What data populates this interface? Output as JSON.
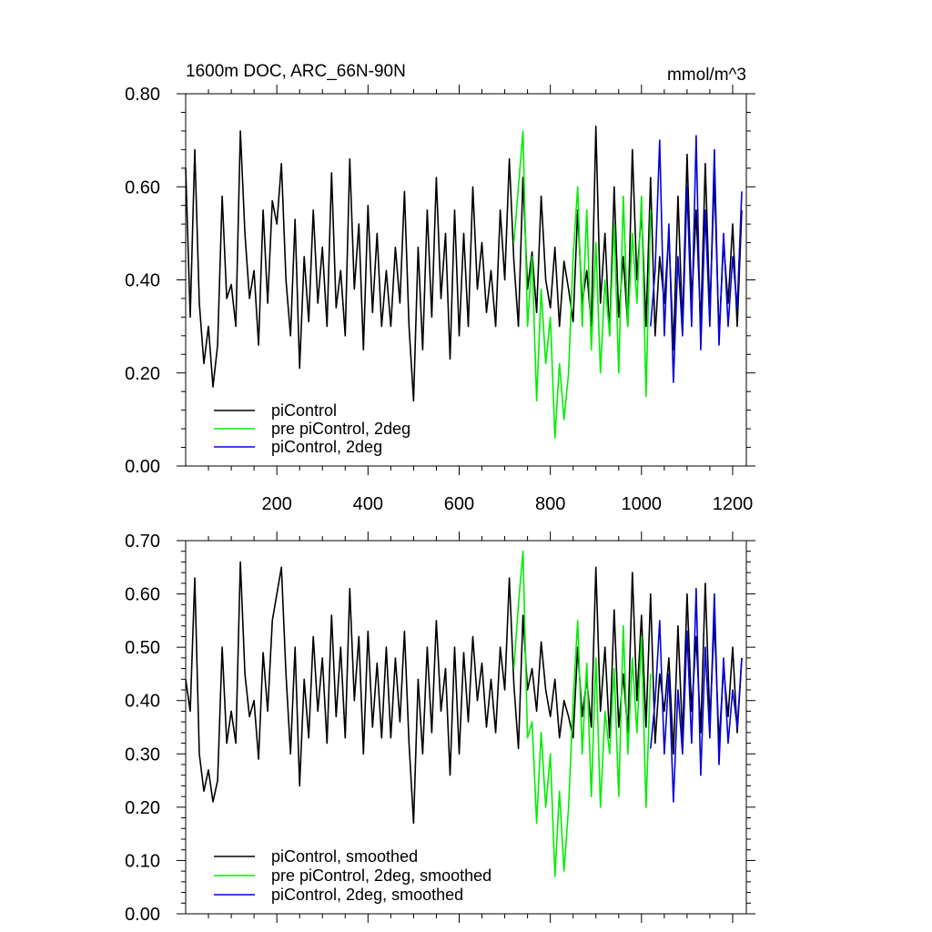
{
  "chart_data": [
    {
      "type": "line",
      "title": "1600m DOC, ARC_66N-90N",
      "units": "mmol/m^3",
      "xlim": [
        0,
        1230
      ],
      "ylim": [
        0,
        0.8
      ],
      "x_ticks": [
        200,
        400,
        600,
        800,
        1000,
        1200
      ],
      "x_tick_labels": [
        "200",
        "400",
        "600",
        "800",
        "1000",
        "1200"
      ],
      "y_ticks": [
        0,
        0.2,
        0.4,
        0.6,
        0.8
      ],
      "y_tick_labels": [
        "0.00",
        "0.20",
        "0.40",
        "0.60",
        "0.80"
      ],
      "legend_position": "bottom-left",
      "series": [
        {
          "name": "piControl",
          "color": "#000000",
          "x": [
            0,
            10,
            20,
            30,
            40,
            50,
            60,
            70,
            80,
            90,
            100,
            110,
            120,
            130,
            140,
            150,
            160,
            170,
            180,
            190,
            200,
            210,
            220,
            230,
            240,
            250,
            260,
            270,
            280,
            290,
            300,
            310,
            320,
            330,
            340,
            350,
            360,
            370,
            380,
            390,
            400,
            410,
            420,
            430,
            440,
            450,
            460,
            470,
            480,
            490,
            500,
            510,
            520,
            530,
            540,
            550,
            560,
            570,
            580,
            590,
            600,
            610,
            620,
            630,
            640,
            650,
            660,
            670,
            680,
            690,
            700,
            710,
            720,
            730,
            740,
            750,
            760,
            770,
            780,
            790,
            800,
            810,
            820,
            830,
            840,
            850,
            860,
            870,
            880,
            890,
            900,
            910,
            920,
            930,
            940,
            950,
            960,
            970,
            980,
            990,
            1000,
            1010,
            1020,
            1030,
            1040,
            1050,
            1060,
            1070,
            1080,
            1090,
            1100,
            1110,
            1120,
            1130,
            1140,
            1150,
            1160,
            1170,
            1180,
            1190,
            1200,
            1210,
            1220
          ],
          "values": [
            0.64,
            0.32,
            0.68,
            0.35,
            0.22,
            0.3,
            0.17,
            0.26,
            0.58,
            0.36,
            0.39,
            0.3,
            0.72,
            0.5,
            0.36,
            0.42,
            0.26,
            0.55,
            0.35,
            0.57,
            0.52,
            0.65,
            0.4,
            0.28,
            0.53,
            0.21,
            0.45,
            0.31,
            0.55,
            0.35,
            0.47,
            0.3,
            0.63,
            0.34,
            0.42,
            0.28,
            0.66,
            0.38,
            0.52,
            0.25,
            0.56,
            0.33,
            0.5,
            0.3,
            0.42,
            0.3,
            0.47,
            0.35,
            0.59,
            0.3,
            0.14,
            0.47,
            0.25,
            0.55,
            0.32,
            0.62,
            0.36,
            0.5,
            0.23,
            0.55,
            0.28,
            0.5,
            0.3,
            0.6,
            0.38,
            0.48,
            0.33,
            0.42,
            0.3,
            0.55,
            0.4,
            0.66,
            0.44,
            0.3,
            0.62,
            0.38,
            0.46,
            0.33,
            0.58,
            0.4,
            0.34,
            0.47,
            0.3,
            0.44,
            0.38,
            0.31,
            0.55,
            0.35,
            0.42,
            0.3,
            0.73,
            0.35,
            0.5,
            0.28,
            0.6,
            0.32,
            0.45,
            0.3,
            0.68,
            0.4,
            0.55,
            0.3,
            0.62,
            0.28,
            0.45,
            0.35,
            0.5,
            0.25,
            0.58,
            0.3,
            0.67,
            0.35,
            0.55,
            0.3,
            0.65,
            0.33,
            0.62,
            0.28,
            0.48,
            0.35,
            0.52,
            0.3,
            0.55
          ]
        },
        {
          "name": "pre piControl, 2deg",
          "color": "#00ee00",
          "x": [
            720,
            730,
            740,
            750,
            760,
            770,
            780,
            790,
            800,
            810,
            820,
            830,
            840,
            850,
            860,
            870,
            880,
            890,
            900,
            910,
            920,
            930,
            940,
            950,
            960,
            970,
            980,
            990,
            1000,
            1010,
            1020
          ],
          "values": [
            0.48,
            0.6,
            0.72,
            0.3,
            0.45,
            0.14,
            0.38,
            0.22,
            0.32,
            0.06,
            0.22,
            0.1,
            0.2,
            0.45,
            0.6,
            0.3,
            0.55,
            0.25,
            0.48,
            0.2,
            0.4,
            0.28,
            0.52,
            0.2,
            0.58,
            0.3,
            0.5,
            0.35,
            0.58,
            0.15,
            0.55
          ]
        },
        {
          "name": "piControl, 2deg",
          "color": "#0000dd",
          "x": [
            1020,
            1030,
            1040,
            1050,
            1060,
            1070,
            1080,
            1090,
            1100,
            1110,
            1120,
            1130,
            1140,
            1150,
            1160,
            1170,
            1180,
            1190,
            1200,
            1210,
            1220
          ],
          "values": [
            0.3,
            0.42,
            0.7,
            0.28,
            0.52,
            0.18,
            0.45,
            0.28,
            0.6,
            0.3,
            0.71,
            0.25,
            0.55,
            0.3,
            0.68,
            0.26,
            0.5,
            0.3,
            0.45,
            0.34,
            0.59
          ]
        }
      ]
    },
    {
      "type": "line",
      "title": "",
      "xlim": [
        0,
        1230
      ],
      "ylim": [
        0,
        0.7
      ],
      "x_ticks": [
        200,
        400,
        600,
        800,
        1000,
        1200
      ],
      "y_ticks": [
        0,
        0.1,
        0.2,
        0.3,
        0.4,
        0.5,
        0.6,
        0.7
      ],
      "y_tick_labels": [
        "0.00",
        "0.10",
        "0.20",
        "0.30",
        "0.40",
        "0.50",
        "0.60",
        "0.70"
      ],
      "legend_position": "bottom-left",
      "series": [
        {
          "name": "piControl, smoothed",
          "color": "#000000",
          "x": [
            0,
            10,
            20,
            30,
            40,
            50,
            60,
            70,
            80,
            90,
            100,
            110,
            120,
            130,
            140,
            150,
            160,
            170,
            180,
            190,
            200,
            210,
            220,
            230,
            240,
            250,
            260,
            270,
            280,
            290,
            300,
            310,
            320,
            330,
            340,
            350,
            360,
            370,
            380,
            390,
            400,
            410,
            420,
            430,
            440,
            450,
            460,
            470,
            480,
            490,
            500,
            510,
            520,
            530,
            540,
            550,
            560,
            570,
            580,
            590,
            600,
            610,
            620,
            630,
            640,
            650,
            660,
            670,
            680,
            690,
            700,
            710,
            720,
            730,
            740,
            750,
            760,
            770,
            780,
            790,
            800,
            810,
            820,
            830,
            840,
            850,
            860,
            870,
            880,
            890,
            900,
            910,
            920,
            930,
            940,
            950,
            960,
            970,
            980,
            990,
            1000,
            1010,
            1020,
            1030,
            1040,
            1050,
            1060,
            1070,
            1080,
            1090,
            1100,
            1110,
            1120,
            1130,
            1140,
            1150,
            1160,
            1170,
            1180,
            1190,
            1200,
            1210,
            1220
          ],
          "values": [
            0.44,
            0.38,
            0.63,
            0.3,
            0.23,
            0.27,
            0.21,
            0.25,
            0.5,
            0.32,
            0.38,
            0.32,
            0.66,
            0.45,
            0.37,
            0.4,
            0.29,
            0.49,
            0.38,
            0.55,
            0.6,
            0.65,
            0.45,
            0.3,
            0.5,
            0.24,
            0.44,
            0.33,
            0.52,
            0.38,
            0.48,
            0.32,
            0.56,
            0.37,
            0.5,
            0.33,
            0.61,
            0.4,
            0.52,
            0.3,
            0.53,
            0.35,
            0.47,
            0.33,
            0.5,
            0.33,
            0.48,
            0.36,
            0.53,
            0.32,
            0.17,
            0.44,
            0.3,
            0.5,
            0.34,
            0.55,
            0.38,
            0.46,
            0.26,
            0.5,
            0.3,
            0.49,
            0.36,
            0.52,
            0.4,
            0.47,
            0.35,
            0.44,
            0.34,
            0.5,
            0.42,
            0.63,
            0.43,
            0.31,
            0.56,
            0.42,
            0.46,
            0.38,
            0.51,
            0.42,
            0.37,
            0.44,
            0.33,
            0.4,
            0.37,
            0.33,
            0.5,
            0.37,
            0.44,
            0.35,
            0.65,
            0.38,
            0.5,
            0.33,
            0.57,
            0.35,
            0.45,
            0.34,
            0.64,
            0.4,
            0.56,
            0.35,
            0.6,
            0.32,
            0.45,
            0.38,
            0.48,
            0.3,
            0.54,
            0.33,
            0.6,
            0.38,
            0.52,
            0.34,
            0.62,
            0.36,
            0.55,
            0.32,
            0.46,
            0.37,
            0.5,
            0.34,
            0.48
          ]
        },
        {
          "name": "pre piControl, 2deg, smoothed",
          "color": "#00ee00",
          "x": [
            720,
            730,
            740,
            750,
            760,
            770,
            780,
            790,
            800,
            810,
            820,
            830,
            840,
            850,
            860,
            870,
            880,
            890,
            900,
            910,
            920,
            930,
            940,
            950,
            960,
            970,
            980,
            990,
            1000,
            1010,
            1020
          ],
          "values": [
            0.46,
            0.58,
            0.68,
            0.33,
            0.36,
            0.17,
            0.34,
            0.2,
            0.3,
            0.07,
            0.23,
            0.08,
            0.2,
            0.4,
            0.55,
            0.3,
            0.47,
            0.22,
            0.48,
            0.2,
            0.38,
            0.3,
            0.46,
            0.22,
            0.54,
            0.3,
            0.48,
            0.34,
            0.52,
            0.2,
            0.45
          ]
        },
        {
          "name": "piControl, 2deg, smoothed",
          "color": "#0000dd",
          "x": [
            1020,
            1030,
            1040,
            1050,
            1060,
            1070,
            1080,
            1090,
            1100,
            1110,
            1120,
            1130,
            1140,
            1150,
            1160,
            1170,
            1180,
            1190,
            1200,
            1210,
            1220
          ],
          "values": [
            0.31,
            0.4,
            0.55,
            0.3,
            0.45,
            0.21,
            0.42,
            0.3,
            0.53,
            0.32,
            0.61,
            0.26,
            0.5,
            0.33,
            0.6,
            0.28,
            0.48,
            0.32,
            0.42,
            0.35,
            0.48
          ]
        }
      ]
    }
  ]
}
